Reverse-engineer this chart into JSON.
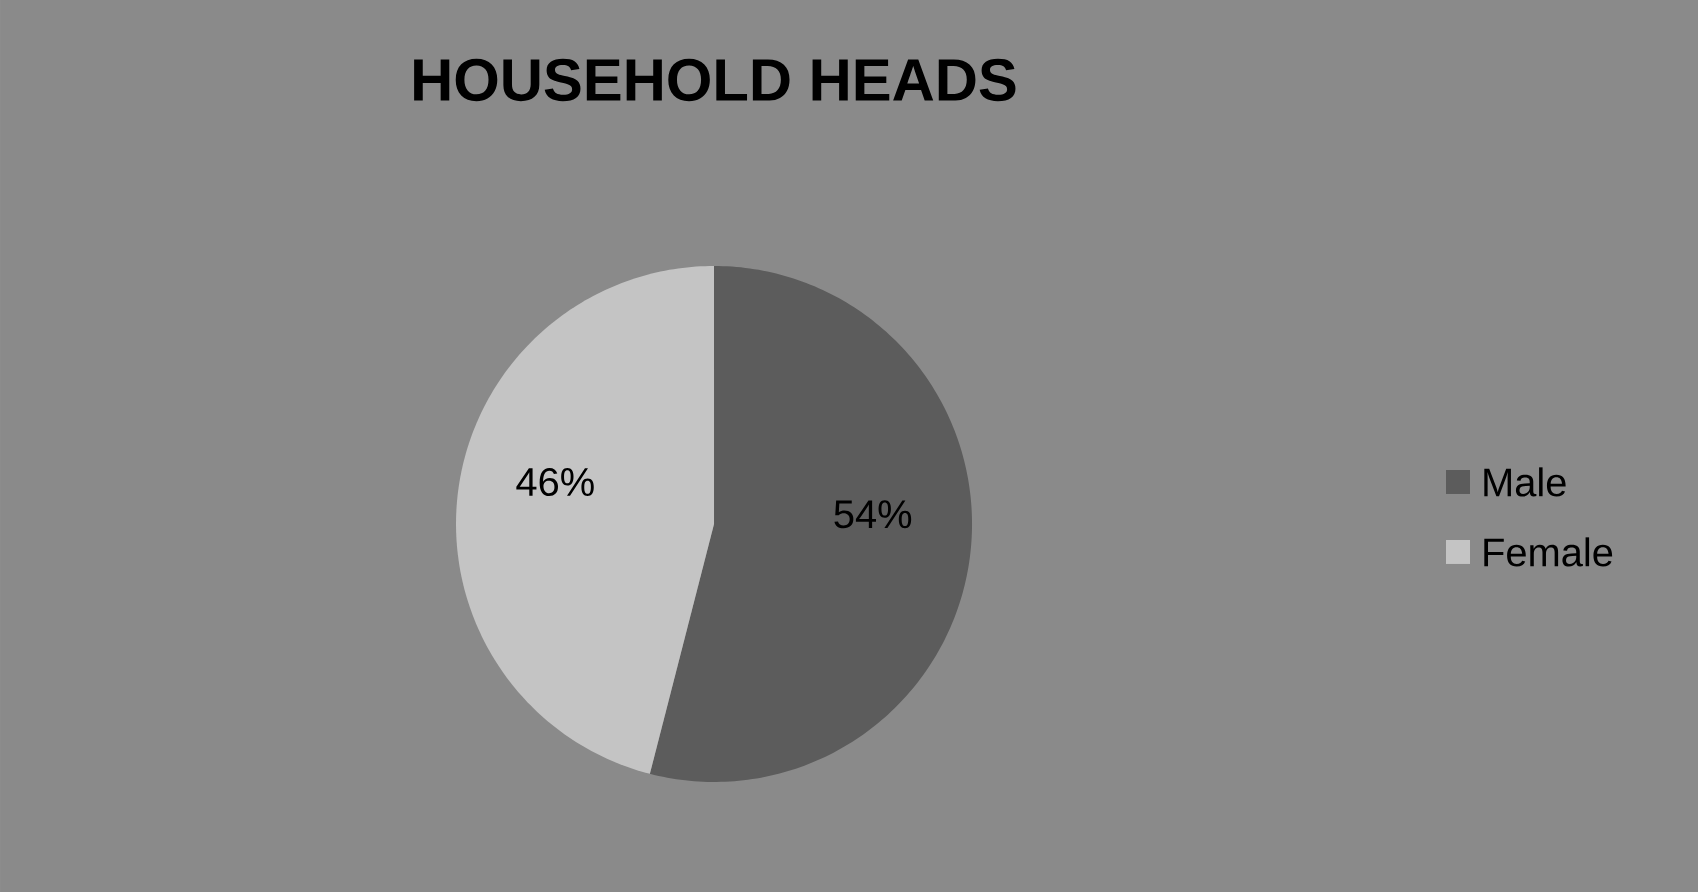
{
  "chart_data": {
    "type": "pie",
    "title": "HOUSEHOLD HEADS",
    "categories": [
      "Male",
      "Female"
    ],
    "values": [
      54,
      46
    ],
    "value_labels": [
      "54%",
      "46%"
    ],
    "colors": [
      "#5c5c5c",
      "#c4c4c4"
    ],
    "legend": "right"
  }
}
